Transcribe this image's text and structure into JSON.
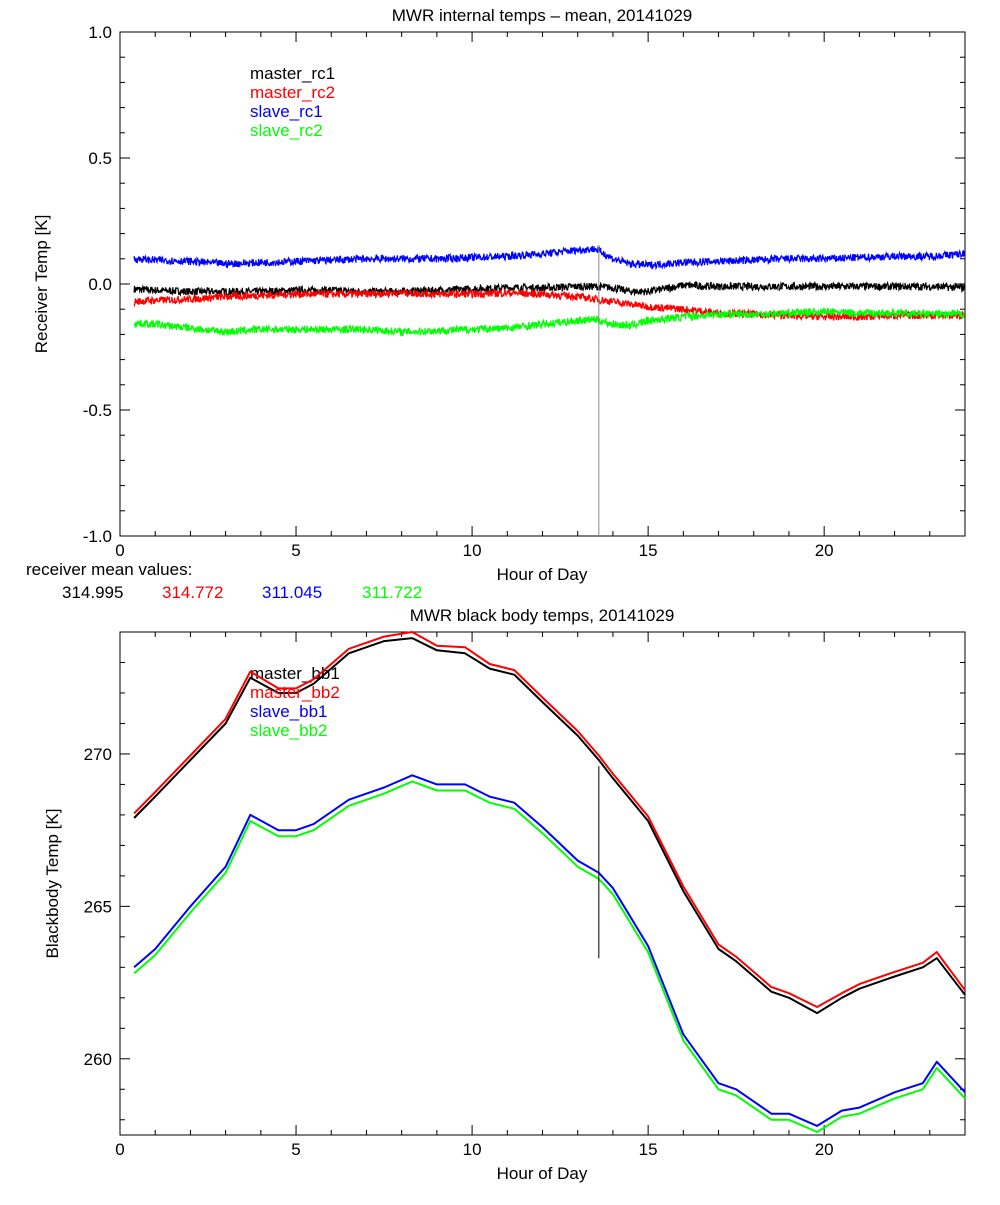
{
  "chart_data": [
    {
      "type": "line",
      "title": "MWR internal temps – mean, 20141029",
      "xlabel": "Hour of Day",
      "ylabel": "Receiver Temp [K]",
      "xlim": [
        0,
        24
      ],
      "ylim": [
        -1.0,
        1.0
      ],
      "xticks": [
        0,
        5,
        10,
        15,
        20
      ],
      "xtick_labels": [
        "0",
        "5",
        "10",
        "15",
        "20"
      ],
      "yticks": [
        -1.0,
        -0.5,
        0.0,
        0.5,
        1.0
      ],
      "ytick_labels": [
        "-1.0",
        "-0.5",
        "0.0",
        "0.5",
        "1.0"
      ],
      "marker_hour": 13.6,
      "marker_range": [
        -1.0,
        0.155
      ],
      "x": [
        0.4,
        1,
        2,
        3,
        4,
        5,
        6,
        7,
        8,
        9,
        10,
        11,
        12,
        13,
        13.5,
        14,
        14.5,
        15,
        16,
        17,
        18,
        19,
        20,
        21,
        22,
        23,
        24
      ],
      "series": [
        {
          "name": "master_rc1",
          "color": "#000000",
          "values": [
            -0.02,
            -0.025,
            -0.03,
            -0.03,
            -0.03,
            -0.025,
            -0.025,
            -0.03,
            -0.03,
            -0.025,
            -0.02,
            -0.015,
            -0.015,
            -0.01,
            -0.01,
            -0.015,
            -0.03,
            -0.03,
            -0.005,
            -0.01,
            -0.01,
            -0.01,
            -0.01,
            -0.01,
            -0.01,
            -0.01,
            -0.015
          ]
        },
        {
          "name": "master_rc2",
          "color": "#ff0000",
          "values": [
            -0.07,
            -0.065,
            -0.06,
            -0.05,
            -0.045,
            -0.04,
            -0.04,
            -0.04,
            -0.035,
            -0.04,
            -0.04,
            -0.035,
            -0.04,
            -0.05,
            -0.06,
            -0.07,
            -0.08,
            -0.09,
            -0.1,
            -0.115,
            -0.12,
            -0.125,
            -0.13,
            -0.13,
            -0.125,
            -0.125,
            -0.125
          ]
        },
        {
          "name": "slave_rc1",
          "color": "#0000ff",
          "values": [
            0.1,
            0.095,
            0.09,
            0.08,
            0.085,
            0.09,
            0.095,
            0.1,
            0.1,
            0.1,
            0.105,
            0.11,
            0.12,
            0.135,
            0.14,
            0.1,
            0.08,
            0.075,
            0.085,
            0.09,
            0.095,
            0.1,
            0.1,
            0.105,
            0.11,
            0.11,
            0.12
          ]
        },
        {
          "name": "slave_rc2",
          "color": "#00ff00",
          "values": [
            -0.155,
            -0.16,
            -0.175,
            -0.19,
            -0.18,
            -0.18,
            -0.18,
            -0.18,
            -0.19,
            -0.185,
            -0.18,
            -0.175,
            -0.16,
            -0.145,
            -0.14,
            -0.16,
            -0.165,
            -0.145,
            -0.13,
            -0.12,
            -0.12,
            -0.115,
            -0.11,
            -0.115,
            -0.115,
            -0.12,
            -0.12
          ]
        }
      ],
      "footnote_label": "receiver mean values:",
      "mean_values": [
        {
          "text": "314.995",
          "color": "#000000"
        },
        {
          "text": "314.772",
          "color": "#ff0000"
        },
        {
          "text": "311.045",
          "color": "#0000ff"
        },
        {
          "text": "311.722",
          "color": "#00ff00"
        }
      ]
    },
    {
      "type": "line",
      "title": "MWR black body temps, 20141029",
      "xlabel": "Hour of Day",
      "ylabel": "Blackbody Temp [K]",
      "xlim": [
        0,
        24
      ],
      "ylim": [
        257.5,
        274
      ],
      "xticks": [
        0,
        5,
        10,
        15,
        20
      ],
      "xtick_labels": [
        "0",
        "5",
        "10",
        "15",
        "20"
      ],
      "yticks": [
        260,
        265,
        270
      ],
      "ytick_labels": [
        "260",
        "265",
        "270"
      ],
      "marker_hour": 13.6,
      "marker_range": [
        263.3,
        269.6
      ],
      "x": [
        0.4,
        1,
        2,
        3,
        3.7,
        4.5,
        5,
        5.5,
        6.5,
        7.5,
        8.3,
        9,
        9.8,
        10.5,
        11.2,
        12,
        13,
        13.6,
        14,
        15,
        16,
        17,
        17.5,
        18.5,
        19,
        19.8,
        20.5,
        21,
        22,
        22.8,
        23.2,
        24
      ],
      "series": [
        {
          "name": "master_bb1",
          "color": "#000000",
          "values": [
            267.9,
            268.6,
            269.8,
            271.0,
            272.5,
            272.0,
            272.0,
            272.3,
            273.3,
            273.7,
            273.8,
            273.4,
            273.3,
            272.8,
            272.6,
            271.7,
            270.6,
            269.8,
            269.2,
            267.8,
            265.5,
            263.6,
            263.2,
            262.2,
            262.0,
            261.5,
            262.0,
            262.3,
            262.7,
            263.0,
            263.3,
            262.1
          ]
        },
        {
          "name": "master_bb2",
          "color": "#ff0000",
          "values": [
            268.05,
            268.75,
            269.95,
            271.15,
            272.7,
            272.15,
            272.15,
            272.45,
            273.45,
            273.85,
            274.0,
            273.55,
            273.5,
            272.95,
            272.75,
            271.85,
            270.75,
            269.95,
            269.35,
            267.95,
            265.65,
            263.75,
            263.35,
            262.35,
            262.15,
            261.7,
            262.15,
            262.45,
            262.85,
            263.15,
            263.5,
            262.25
          ]
        },
        {
          "name": "slave_bb1",
          "color": "#0000ff",
          "values": [
            263.0,
            263.6,
            265.0,
            266.3,
            268.0,
            267.5,
            267.5,
            267.7,
            268.5,
            268.9,
            269.3,
            269.0,
            269.0,
            268.6,
            268.4,
            267.6,
            266.5,
            266.1,
            265.6,
            263.7,
            260.8,
            259.2,
            259.0,
            258.2,
            258.2,
            257.8,
            258.3,
            258.4,
            258.9,
            259.2,
            259.9,
            258.9
          ]
        },
        {
          "name": "slave_bb2",
          "color": "#00ff00",
          "values": [
            262.8,
            263.4,
            264.8,
            266.1,
            267.8,
            267.3,
            267.3,
            267.5,
            268.3,
            268.7,
            269.1,
            268.8,
            268.8,
            268.4,
            268.2,
            267.4,
            266.3,
            265.9,
            265.4,
            263.5,
            260.6,
            259.0,
            258.8,
            258.0,
            258.0,
            257.6,
            258.1,
            258.2,
            258.7,
            259.0,
            259.7,
            258.7
          ]
        }
      ]
    }
  ]
}
